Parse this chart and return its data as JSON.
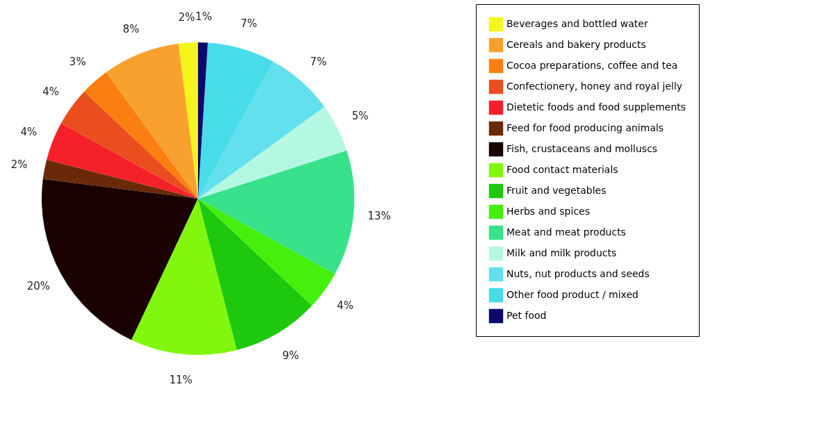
{
  "chart_data": {
    "type": "pie",
    "legend": "right",
    "categories": [
      "Beverages and bottled water",
      "Cereals and bakery products",
      "Cocoa preparations, coffee and tea",
      "Confectionery, honey and royal jelly",
      "Dietetic foods and food supplements",
      "Feed for food producing animals",
      "Fish, crustaceans and molluscs",
      "Food contact materials",
      "Fruit and vegetables",
      "Herbs and spices",
      "Meat and meat products",
      "Milk and milk products",
      "Nuts, nut products and seeds",
      "Other food product / mixed",
      "Pet food"
    ],
    "values": [
      2,
      8,
      3,
      4,
      4,
      2,
      20,
      11,
      9,
      4,
      13,
      5,
      7,
      7,
      1
    ],
    "value_labels": [
      "2%",
      "8%",
      "3%",
      "4%",
      "4%",
      "2%",
      "20%",
      "11%",
      "9%",
      "4%",
      "13%",
      "5%",
      "7%",
      "7%",
      "1%"
    ],
    "colors": [
      "#f5f51c",
      "#f9a12e",
      "#fb7f10",
      "#ea4e1e",
      "#f4212a",
      "#6a2a0a",
      "#1a0000",
      "#80f70c",
      "#1ec80c",
      "#44f00c",
      "#38e28a",
      "#b4f8e4",
      "#62e0ee",
      "#46dce8",
      "#0a0a6e"
    ]
  }
}
